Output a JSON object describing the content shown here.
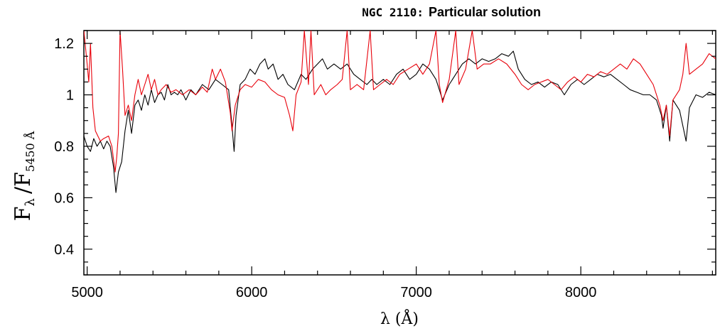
{
  "chart_data": {
    "type": "line",
    "title_prefix": "NGC 2110:",
    "title": "Particular solution",
    "xlabel": "λ (Å)",
    "ylabel": {
      "main": "F",
      "sub_1": "λ",
      "sep": "/F",
      "sub_2": "5450 Å"
    },
    "xlim": [
      4980,
      8820
    ],
    "ylim": [
      0.3,
      1.25
    ],
    "xticks": [
      {
        "value": 5000,
        "label": "5000"
      },
      {
        "value": 6000,
        "label": "6000"
      },
      {
        "value": 7000,
        "label": "7000"
      },
      {
        "value": 8000,
        "label": "8000"
      }
    ],
    "yticks": [
      {
        "value": 0.4,
        "label": "0.4"
      },
      {
        "value": 0.6,
        "label": "0.6"
      },
      {
        "value": 0.8,
        "label": "0.8"
      },
      {
        "value": 1.0,
        "label": "1"
      },
      {
        "value": 1.2,
        "label": "1.2"
      }
    ],
    "grid": false,
    "legend": false,
    "series": [
      {
        "color": "#000000",
        "points": [
          [
            4980,
            0.84
          ],
          [
            5000,
            0.8
          ],
          [
            5020,
            0.78
          ],
          [
            5040,
            0.83
          ],
          [
            5060,
            0.8
          ],
          [
            5080,
            0.82
          ],
          [
            5100,
            0.79
          ],
          [
            5120,
            0.82
          ],
          [
            5140,
            0.8
          ],
          [
            5160,
            0.72
          ],
          [
            5175,
            0.62
          ],
          [
            5190,
            0.7
          ],
          [
            5210,
            0.74
          ],
          [
            5230,
            0.86
          ],
          [
            5250,
            0.94
          ],
          [
            5270,
            0.85
          ],
          [
            5290,
            0.96
          ],
          [
            5310,
            0.98
          ],
          [
            5330,
            0.94
          ],
          [
            5350,
            1.0
          ],
          [
            5370,
            0.96
          ],
          [
            5390,
            1.02
          ],
          [
            5410,
            0.97
          ],
          [
            5430,
            1.0
          ],
          [
            5450,
            1.01
          ],
          [
            5470,
            0.98
          ],
          [
            5490,
            1.04
          ],
          [
            5510,
            1.0
          ],
          [
            5530,
            1.01
          ],
          [
            5550,
            1.0
          ],
          [
            5570,
            1.02
          ],
          [
            5600,
            0.98
          ],
          [
            5630,
            1.02
          ],
          [
            5660,
            1.0
          ],
          [
            5700,
            1.04
          ],
          [
            5740,
            1.02
          ],
          [
            5780,
            1.06
          ],
          [
            5820,
            1.04
          ],
          [
            5860,
            1.02
          ],
          [
            5880,
            0.88
          ],
          [
            5893,
            0.78
          ],
          [
            5905,
            0.92
          ],
          [
            5930,
            1.04
          ],
          [
            5960,
            1.06
          ],
          [
            5990,
            1.1
          ],
          [
            6020,
            1.08
          ],
          [
            6050,
            1.12
          ],
          [
            6080,
            1.14
          ],
          [
            6100,
            1.1
          ],
          [
            6130,
            1.12
          ],
          [
            6160,
            1.06
          ],
          [
            6190,
            1.08
          ],
          [
            6220,
            1.04
          ],
          [
            6260,
            1.02
          ],
          [
            6300,
            1.08
          ],
          [
            6330,
            1.06
          ],
          [
            6370,
            1.1
          ],
          [
            6400,
            1.12
          ],
          [
            6430,
            1.14
          ],
          [
            6460,
            1.1
          ],
          [
            6500,
            1.12
          ],
          [
            6540,
            1.1
          ],
          [
            6580,
            1.12
          ],
          [
            6620,
            1.08
          ],
          [
            6660,
            1.06
          ],
          [
            6700,
            1.04
          ],
          [
            6730,
            1.06
          ],
          [
            6760,
            1.04
          ],
          [
            6800,
            1.06
          ],
          [
            6840,
            1.04
          ],
          [
            6880,
            1.08
          ],
          [
            6920,
            1.1
          ],
          [
            6960,
            1.06
          ],
          [
            7000,
            1.08
          ],
          [
            7040,
            1.12
          ],
          [
            7080,
            1.1
          ],
          [
            7120,
            1.06
          ],
          [
            7140,
            1.02
          ],
          [
            7160,
            0.98
          ],
          [
            7200,
            1.04
          ],
          [
            7240,
            1.08
          ],
          [
            7280,
            1.12
          ],
          [
            7320,
            1.14
          ],
          [
            7360,
            1.12
          ],
          [
            7400,
            1.14
          ],
          [
            7440,
            1.13
          ],
          [
            7480,
            1.14
          ],
          [
            7520,
            1.16
          ],
          [
            7560,
            1.15
          ],
          [
            7590,
            1.17
          ],
          [
            7620,
            1.1
          ],
          [
            7660,
            1.06
          ],
          [
            7700,
            1.04
          ],
          [
            7740,
            1.05
          ],
          [
            7780,
            1.03
          ],
          [
            7820,
            1.05
          ],
          [
            7860,
            1.04
          ],
          [
            7900,
            1.0
          ],
          [
            7940,
            1.04
          ],
          [
            7980,
            1.06
          ],
          [
            8020,
            1.04
          ],
          [
            8060,
            1.06
          ],
          [
            8100,
            1.08
          ],
          [
            8140,
            1.07
          ],
          [
            8180,
            1.08
          ],
          [
            8220,
            1.06
          ],
          [
            8260,
            1.04
          ],
          [
            8300,
            1.02
          ],
          [
            8340,
            1.01
          ],
          [
            8380,
            1.0
          ],
          [
            8420,
            1.0
          ],
          [
            8460,
            0.98
          ],
          [
            8490,
            0.92
          ],
          [
            8500,
            0.87
          ],
          [
            8520,
            0.96
          ],
          [
            8540,
            0.82
          ],
          [
            8560,
            0.98
          ],
          [
            8600,
            0.94
          ],
          [
            8640,
            0.82
          ],
          [
            8660,
            0.95
          ],
          [
            8700,
            1.0
          ],
          [
            8740,
            0.99
          ],
          [
            8780,
            1.01
          ],
          [
            8820,
            1.0
          ]
        ]
      },
      {
        "color": "#e8000a",
        "points": [
          [
            4980,
            1.25
          ],
          [
            5000,
            1.12
          ],
          [
            5010,
            1.05
          ],
          [
            5020,
            1.2
          ],
          [
            5035,
            0.95
          ],
          [
            5050,
            0.86
          ],
          [
            5080,
            0.82
          ],
          [
            5100,
            0.83
          ],
          [
            5130,
            0.84
          ],
          [
            5150,
            0.8
          ],
          [
            5170,
            0.7
          ],
          [
            5180,
            0.76
          ],
          [
            5190,
            0.85
          ],
          [
            5200,
            1.25
          ],
          [
            5215,
            1.1
          ],
          [
            5230,
            0.92
          ],
          [
            5250,
            0.96
          ],
          [
            5270,
            0.9
          ],
          [
            5290,
            1.0
          ],
          [
            5310,
            1.06
          ],
          [
            5330,
            1.0
          ],
          [
            5350,
            1.04
          ],
          [
            5370,
            1.08
          ],
          [
            5390,
            1.02
          ],
          [
            5410,
            1.06
          ],
          [
            5430,
            1.0
          ],
          [
            5450,
            1.02
          ],
          [
            5480,
            1.04
          ],
          [
            5510,
            1.01
          ],
          [
            5540,
            1.02
          ],
          [
            5580,
            1.0
          ],
          [
            5620,
            1.02
          ],
          [
            5660,
            1.0
          ],
          [
            5700,
            1.03
          ],
          [
            5730,
            1.01
          ],
          [
            5760,
            1.1
          ],
          [
            5780,
            1.06
          ],
          [
            5810,
            1.1
          ],
          [
            5840,
            1.05
          ],
          [
            5870,
            0.93
          ],
          [
            5880,
            0.86
          ],
          [
            5900,
            0.96
          ],
          [
            5930,
            1.02
          ],
          [
            5960,
            1.04
          ],
          [
            6000,
            1.03
          ],
          [
            6040,
            1.06
          ],
          [
            6080,
            1.05
          ],
          [
            6120,
            1.02
          ],
          [
            6160,
            1.0
          ],
          [
            6200,
            0.99
          ],
          [
            6230,
            0.92
          ],
          [
            6250,
            0.86
          ],
          [
            6270,
            1.0
          ],
          [
            6300,
            1.05
          ],
          [
            6320,
            1.25
          ],
          [
            6345,
            1.04
          ],
          [
            6360,
            1.25
          ],
          [
            6380,
            1.0
          ],
          [
            6420,
            1.04
          ],
          [
            6450,
            1.0
          ],
          [
            6480,
            1.02
          ],
          [
            6520,
            1.04
          ],
          [
            6550,
            1.06
          ],
          [
            6580,
            1.25
          ],
          [
            6600,
            1.02
          ],
          [
            6640,
            1.04
          ],
          [
            6680,
            1.02
          ],
          [
            6720,
            1.25
          ],
          [
            6740,
            1.02
          ],
          [
            6780,
            1.04
          ],
          [
            6820,
            1.06
          ],
          [
            6860,
            1.04
          ],
          [
            6900,
            1.08
          ],
          [
            6950,
            1.1
          ],
          [
            7000,
            1.12
          ],
          [
            7040,
            1.08
          ],
          [
            7080,
            1.12
          ],
          [
            7120,
            1.25
          ],
          [
            7140,
            1.04
          ],
          [
            7160,
            0.97
          ],
          [
            7200,
            1.06
          ],
          [
            7240,
            1.25
          ],
          [
            7260,
            1.04
          ],
          [
            7300,
            1.1
          ],
          [
            7340,
            1.25
          ],
          [
            7370,
            1.1
          ],
          [
            7410,
            1.12
          ],
          [
            7450,
            1.12
          ],
          [
            7500,
            1.14
          ],
          [
            7550,
            1.12
          ],
          [
            7600,
            1.08
          ],
          [
            7640,
            1.04
          ],
          [
            7680,
            1.02
          ],
          [
            7720,
            1.04
          ],
          [
            7760,
            1.05
          ],
          [
            7800,
            1.06
          ],
          [
            7840,
            1.04
          ],
          [
            7880,
            1.02
          ],
          [
            7920,
            1.05
          ],
          [
            7960,
            1.07
          ],
          [
            8000,
            1.05
          ],
          [
            8040,
            1.08
          ],
          [
            8080,
            1.07
          ],
          [
            8120,
            1.09
          ],
          [
            8160,
            1.08
          ],
          [
            8200,
            1.1
          ],
          [
            8240,
            1.12
          ],
          [
            8280,
            1.1
          ],
          [
            8320,
            1.14
          ],
          [
            8360,
            1.12
          ],
          [
            8400,
            1.08
          ],
          [
            8440,
            1.04
          ],
          [
            8480,
            0.96
          ],
          [
            8500,
            0.9
          ],
          [
            8520,
            0.96
          ],
          [
            8540,
            0.84
          ],
          [
            8560,
            0.98
          ],
          [
            8600,
            1.02
          ],
          [
            8620,
            1.08
          ],
          [
            8640,
            1.2
          ],
          [
            8660,
            1.08
          ],
          [
            8700,
            1.1
          ],
          [
            8740,
            1.12
          ],
          [
            8780,
            1.16
          ],
          [
            8820,
            1.14
          ]
        ]
      }
    ]
  }
}
